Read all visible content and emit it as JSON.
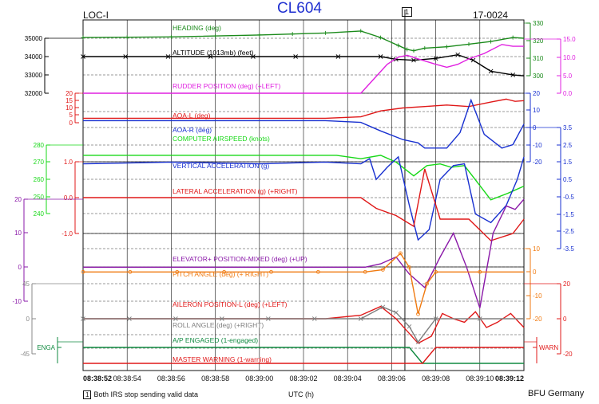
{
  "header": {
    "title": "CL604",
    "left_label": "LOC-I",
    "right_label": "17-0024",
    "event_marker": "1"
  },
  "footer": {
    "note_marker": "1",
    "note_text": "Both IRS stop sending valid data",
    "xlabel": "UTC (h)",
    "credit": "BFU Germany"
  },
  "colors": {
    "heading": "#1a8a1a",
    "altitude": "#000000",
    "rudder": "#e020e0",
    "aoa_l": "#e01818",
    "aoa_r": "#1830d0",
    "airspeed": "#18d818",
    "vert_acc": "#1830d0",
    "lat_acc": "#e01818",
    "elevator": "#8a18a8",
    "pitch": "#f07a10",
    "aileron": "#e01818",
    "roll": "#808080",
    "ap": "#108a40",
    "warn": "#e01818"
  },
  "chart_data": {
    "type": "line",
    "x_axis": {
      "label": "UTC (h)",
      "range": [
        "08:38:52",
        "08:39:12"
      ],
      "ticks": [
        "08:38:52",
        "08:38:54",
        "08:38:56",
        "08:38:58",
        "08:39:00",
        "08:39:02",
        "08:39:04",
        "08:39:06",
        "08:39:08",
        "08:39:10",
        "08:39:12"
      ]
    },
    "event_line_time": "08:39:06.6",
    "axes": [
      {
        "id": "alt",
        "side": "left",
        "color": "#000000",
        "ylim": [
          32000,
          35000
        ],
        "ticks": [
          "35000",
          "34000",
          "33000",
          "32000"
        ]
      },
      {
        "id": "aoa_l",
        "side": "left",
        "color": "#e01818",
        "ylim": [
          0,
          20
        ],
        "ticks": [
          "20",
          "15",
          "10",
          "5",
          "0"
        ]
      },
      {
        "id": "airspeed",
        "side": "left",
        "color": "#18d818",
        "ylim": [
          240,
          280
        ],
        "ticks": [
          "280",
          "270",
          "260",
          "250",
          "240"
        ]
      },
      {
        "id": "lat_acc",
        "side": "left",
        "color": "#e01818",
        "ylim": [
          -1.0,
          1.0
        ],
        "ticks": [
          "1.0",
          "0.0",
          "-1.0"
        ]
      },
      {
        "id": "elevator",
        "side": "left",
        "color": "#8a18a8",
        "ylim": [
          -10,
          20
        ],
        "ticks": [
          "20",
          "10",
          "0",
          "-10"
        ]
      },
      {
        "id": "aileron",
        "side": "left",
        "color": "#888888",
        "ylim": [
          -45,
          45
        ],
        "ticks": [
          "45",
          "0",
          "-45"
        ]
      },
      {
        "id": "ap",
        "side": "left",
        "color": "#108a40",
        "ticks": [
          "ENGA"
        ]
      },
      {
        "id": "heading",
        "side": "right",
        "color": "#1a8a1a",
        "ylim": [
          290,
          330
        ],
        "ticks": [
          "330",
          "320",
          "310",
          "300"
        ]
      },
      {
        "id": "rudder",
        "side": "right",
        "color": "#e020e0",
        "ylim": [
          0,
          15
        ],
        "ticks": [
          "15.0",
          "10.0",
          "5.0",
          "0.0"
        ]
      },
      {
        "id": "aoa_r",
        "side": "right",
        "color": "#1830d0",
        "ylim": [
          -20,
          20
        ],
        "ticks": [
          "20",
          "10",
          "0",
          "-10",
          "-20"
        ]
      },
      {
        "id": "vert_acc",
        "side": "right",
        "color": "#1830d0",
        "ylim": [
          -3.5,
          3.5
        ],
        "ticks": [
          "3.5",
          "2.5",
          "1.5",
          "0.5",
          "-0.5",
          "-1.5",
          "-2.5",
          "-3.5"
        ]
      },
      {
        "id": "pitch",
        "side": "right",
        "color": "#f07a10",
        "ylim": [
          -20,
          10
        ],
        "ticks": [
          "10",
          "0",
          "-10",
          "-20"
        ]
      },
      {
        "id": "roll",
        "side": "right",
        "color": "#e01818",
        "ylim": [
          -20,
          20
        ],
        "ticks": [
          "20",
          "0",
          "-20"
        ]
      },
      {
        "id": "warn",
        "side": "right",
        "color": "#e01818",
        "ticks": [
          "WARN"
        ]
      }
    ],
    "series": [
      {
        "name": "HEADING (deg)",
        "key": "heading",
        "axis": "heading",
        "marker": "plus",
        "label_time": 2.8,
        "points": [
          [
            0,
            319
          ],
          [
            4,
            319.5
          ],
          [
            8,
            321
          ],
          [
            11,
            322.5
          ],
          [
            12.6,
            324
          ],
          [
            13.5,
            319
          ],
          [
            14.3,
            313
          ],
          [
            14.7,
            310
          ],
          [
            15,
            309
          ],
          [
            15.5,
            311
          ],
          [
            16.5,
            312
          ],
          [
            17.5,
            314
          ],
          [
            18.5,
            316
          ],
          [
            19.5,
            319
          ],
          [
            20,
            318.5
          ]
        ]
      },
      {
        "name": "ALTITUDE (1013mb) (feet)",
        "key": "altitude",
        "axis": "alt",
        "marker": "x",
        "label_time": 3.6,
        "points": [
          [
            0,
            34000
          ],
          [
            13.5,
            34000
          ],
          [
            14.2,
            33850
          ],
          [
            15,
            33800
          ],
          [
            16,
            33900
          ],
          [
            17,
            34100
          ],
          [
            17.7,
            33800
          ],
          [
            18.5,
            33200
          ],
          [
            19.5,
            33000
          ],
          [
            20,
            32950
          ]
        ]
      },
      {
        "name": "RUDDER POSITION (deg) (+LEFT)",
        "key": "rudder",
        "axis": "rudder",
        "label_time": 3.3,
        "points": [
          [
            0,
            0
          ],
          [
            12.6,
            0
          ],
          [
            13.2,
            4
          ],
          [
            13.8,
            8
          ],
          [
            14.3,
            10
          ],
          [
            14.7,
            10.5
          ],
          [
            15.2,
            9.5
          ],
          [
            16,
            8
          ],
          [
            16.5,
            7.2
          ],
          [
            17,
            8
          ],
          [
            17.5,
            9.5
          ],
          [
            18.2,
            11
          ],
          [
            19,
            13.5
          ],
          [
            19.5,
            13
          ],
          [
            20,
            13
          ]
        ]
      },
      {
        "name": "AOA-L (deg)",
        "key": "aoa_l",
        "axis": "aoa_l",
        "label_time": 3.7,
        "points": [
          [
            0,
            3
          ],
          [
            11,
            3
          ],
          [
            12.6,
            4
          ],
          [
            13.5,
            8
          ],
          [
            14.5,
            10
          ],
          [
            15.5,
            11
          ],
          [
            16.5,
            12
          ],
          [
            17.5,
            11
          ],
          [
            18.5,
            14
          ],
          [
            19.2,
            16
          ],
          [
            19.6,
            14.5
          ],
          [
            20,
            15
          ]
        ]
      },
      {
        "name": "AOA-R (deg)",
        "key": "aoa_r",
        "axis": "aoa_r",
        "label_time": 3.7,
        "points": [
          [
            0,
            4
          ],
          [
            11,
            4
          ],
          [
            12.6,
            3
          ],
          [
            13.5,
            -2
          ],
          [
            14.5,
            -7
          ],
          [
            15.2,
            -9
          ],
          [
            15.5,
            -12
          ],
          [
            16.5,
            -12
          ],
          [
            17.1,
            -3
          ],
          [
            17.6,
            16
          ],
          [
            18.2,
            -4
          ],
          [
            19,
            -12
          ],
          [
            19.5,
            -10
          ],
          [
            20,
            2
          ]
        ]
      },
      {
        "name": "COMPUTER AIRSPEED (knots)",
        "key": "airspeed",
        "axis": "airspeed",
        "label_time": 3.7,
        "points": [
          [
            0,
            274
          ],
          [
            11.5,
            274
          ],
          [
            12.6,
            272
          ],
          [
            13.5,
            274
          ],
          [
            14.2,
            270
          ],
          [
            15,
            262
          ],
          [
            15.6,
            268
          ],
          [
            16.2,
            269
          ],
          [
            16.7,
            267
          ],
          [
            17.3,
            268
          ],
          [
            18.5,
            248
          ],
          [
            19.3,
            252
          ],
          [
            20,
            256
          ]
        ]
      },
      {
        "name": "VERTICAL ACCELERATION (g)",
        "key": "vert_acc",
        "axis": "vert_acc",
        "label_time": 3.7,
        "points": [
          [
            0,
            1.4
          ],
          [
            4,
            1.5
          ],
          [
            8,
            1.4
          ],
          [
            11,
            1.5
          ],
          [
            12.6,
            1.4
          ],
          [
            13,
            1.7
          ],
          [
            13.3,
            0.5
          ],
          [
            13.8,
            1.2
          ],
          [
            14.3,
            1.8
          ],
          [
            14.8,
            -1.0
          ],
          [
            15.2,
            -3.0
          ],
          [
            15.7,
            -2.4
          ],
          [
            16.2,
            0.5
          ],
          [
            16.8,
            1.3
          ],
          [
            17.3,
            1.4
          ],
          [
            17.8,
            -1.5
          ],
          [
            18.5,
            -2.0
          ],
          [
            19.2,
            -1.0
          ],
          [
            19.7,
            0.5
          ],
          [
            20,
            1.8
          ]
        ]
      },
      {
        "name": "LATERAL ACCELERATION (g) (+RIGHT)",
        "key": "lat_acc",
        "axis": "lat_acc",
        "label_time": 3.7,
        "points": [
          [
            0,
            0
          ],
          [
            12.6,
            0
          ],
          [
            13.3,
            -0.3
          ],
          [
            14.2,
            -0.5
          ],
          [
            15,
            -0.8
          ],
          [
            15.5,
            0.8
          ],
          [
            16.2,
            -0.6
          ],
          [
            17.5,
            -0.6
          ],
          [
            18.5,
            -1.2
          ],
          [
            19.5,
            -1.0
          ],
          [
            20,
            -0.6
          ]
        ]
      },
      {
        "name": "ELEVATOR+ POSITION-MIXED (deg) (+UP)",
        "key": "elevator",
        "axis": "elevator",
        "label_time": 3.7,
        "points": [
          [
            0,
            0
          ],
          [
            12.8,
            0
          ],
          [
            13.5,
            1
          ],
          [
            14.2,
            3
          ],
          [
            14.8,
            -2
          ],
          [
            15.5,
            -6
          ],
          [
            16.2,
            3
          ],
          [
            16.8,
            10
          ],
          [
            17.4,
            0
          ],
          [
            18,
            -12
          ],
          [
            18.6,
            10
          ],
          [
            19.2,
            18
          ],
          [
            19.6,
            17
          ],
          [
            20,
            20
          ]
        ]
      },
      {
        "name": "PITCH ANGLE (deg) (+ RIGHT)",
        "key": "pitch",
        "axis": "pitch",
        "marker": "circle",
        "label_time": 3.7,
        "points": [
          [
            0,
            0
          ],
          [
            12.8,
            0
          ],
          [
            13.6,
            1
          ],
          [
            14.4,
            8
          ],
          [
            14.8,
            2
          ],
          [
            15.2,
            -18
          ],
          [
            15.6,
            -5
          ],
          [
            16,
            0
          ],
          [
            20,
            0
          ]
        ]
      },
      {
        "name": "AILERON POSITION-L (deg) (+LEFT)",
        "key": "aileron",
        "axis": "roll",
        "label_time": 3.7,
        "points": [
          [
            0,
            0
          ],
          [
            11,
            0
          ],
          [
            12.6,
            2
          ],
          [
            13.5,
            7
          ],
          [
            14.2,
            0
          ],
          [
            15.2,
            -14
          ],
          [
            15.8,
            -10
          ],
          [
            16.3,
            3
          ],
          [
            16.8,
            0
          ],
          [
            17.3,
            -2
          ],
          [
            17.8,
            4
          ],
          [
            18.3,
            -5
          ],
          [
            18.8,
            -2
          ],
          [
            19.4,
            3
          ],
          [
            20,
            -5
          ]
        ]
      },
      {
        "name": "ROLL ANGLE (deg) (+RIGHT)",
        "key": "roll",
        "axis": "aileron",
        "marker": "x",
        "label_time": 3.7,
        "points": [
          [
            0,
            0
          ],
          [
            12.6,
            0
          ],
          [
            13.6,
            15
          ],
          [
            14.2,
            8
          ],
          [
            14.8,
            -10
          ],
          [
            15.2,
            -30
          ],
          [
            16,
            0
          ],
          [
            20,
            0
          ]
        ]
      }
    ],
    "discrete": [
      {
        "name": "A/P ENGAGED (1-engaged)",
        "key": "ap",
        "label_time": 3.7,
        "points": [
          [
            0,
            1
          ],
          [
            14.8,
            1
          ],
          [
            15.4,
            0
          ],
          [
            20,
            0
          ]
        ]
      },
      {
        "name": "MASTER WARNING (1-warning)",
        "key": "warn",
        "label_time": 3.7,
        "points": [
          [
            0,
            0
          ],
          [
            15.4,
            0
          ],
          [
            16,
            1
          ],
          [
            20,
            1
          ]
        ]
      }
    ]
  }
}
